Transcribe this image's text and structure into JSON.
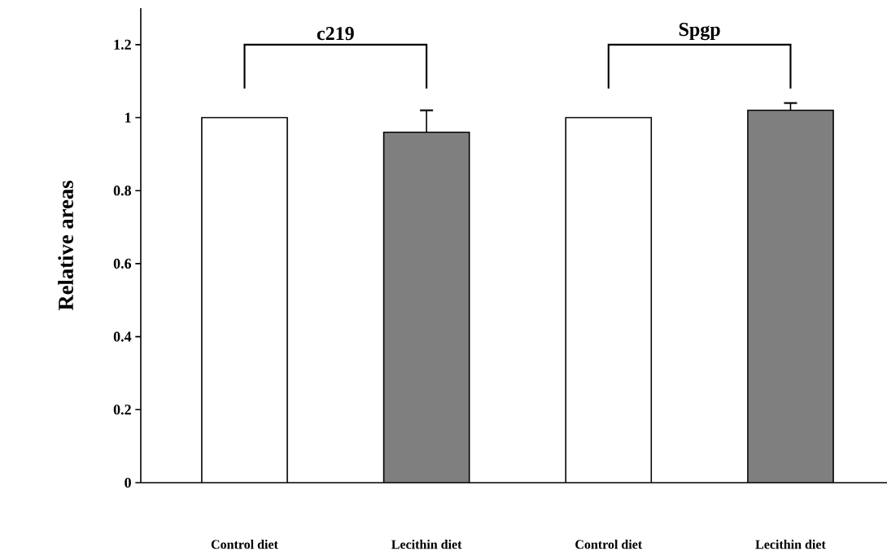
{
  "chart_data": {
    "type": "bar",
    "categories": [
      "Control diet",
      "Lecithin diet",
      "Control diet",
      "Lecithin diet"
    ],
    "values": [
      1.0,
      0.96,
      1.0,
      1.02
    ],
    "errors": [
      null,
      0.06,
      null,
      0.02
    ],
    "colors": [
      "#ffffff",
      "#7f7f7f",
      "#ffffff",
      "#7f7f7f"
    ],
    "ylabel": "Relative areas",
    "ylim": [
      0,
      1.3
    ],
    "yticks": [
      {
        "value": 0,
        "label": "0"
      },
      {
        "value": 0.2,
        "label": "0.2"
      },
      {
        "value": 0.4,
        "label": "0.4"
      },
      {
        "value": 0.6,
        "label": "0.6"
      },
      {
        "value": 0.8,
        "label": "0.8"
      },
      {
        "value": 1,
        "label": "1"
      },
      {
        "value": 1.2,
        "label": "1.2"
      }
    ],
    "annotations": [
      "c219",
      "Spgp"
    ],
    "grid": false
  }
}
